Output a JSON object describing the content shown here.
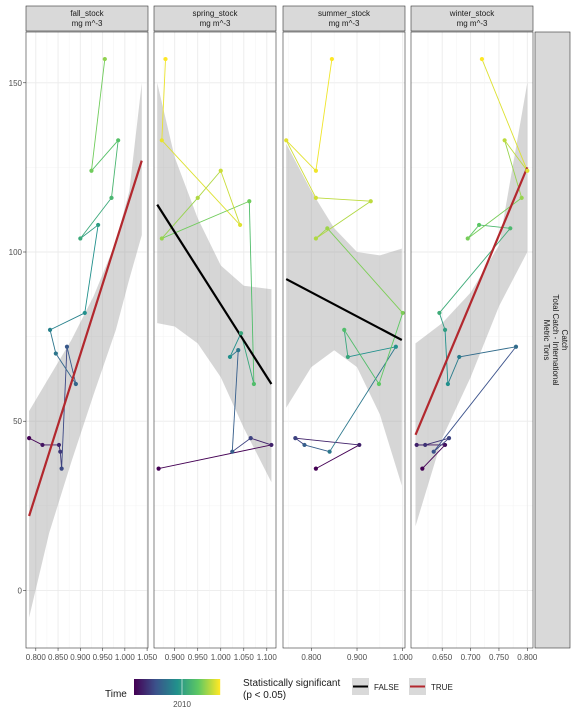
{
  "chart_data": {
    "type": "scatter",
    "y_ticks": [
      0,
      50,
      100,
      150
    ],
    "ylim": [
      -17,
      165
    ],
    "strip_right": [
      "Catch",
      "Total Catch - International",
      "Metric Tons"
    ],
    "time_colors": [
      "#440154",
      "#3b528b",
      "#21908c",
      "#5dc863",
      "#fde725"
    ],
    "panels": [
      {
        "title": "fall_stock",
        "units": "mg m^-3",
        "xlim": [
          0.778,
          1.052
        ],
        "x_ticks": [
          0.8,
          0.85,
          0.9,
          0.95,
          1.0,
          1.05
        ],
        "x_tick_labels": [
          "0.800",
          "0.850",
          "0.900",
          "0.950",
          "1.000",
          "1.050"
        ],
        "significant": true,
        "trend": [
          [
            0.785,
            22
          ],
          [
            1.038,
            127
          ]
        ],
        "ribbon_upper": [
          [
            0.785,
            53
          ],
          [
            0.83,
            63
          ],
          [
            0.88,
            74
          ],
          [
            0.93,
            87
          ],
          [
            0.98,
            103
          ],
          [
            1.01,
            118
          ],
          [
            1.038,
            150
          ]
        ],
        "ribbon_lower": [
          [
            0.785,
            -8
          ],
          [
            0.83,
            17
          ],
          [
            0.88,
            38
          ],
          [
            0.93,
            58
          ],
          [
            0.98,
            77
          ],
          [
            1.01,
            92
          ],
          [
            1.038,
            105
          ]
        ],
        "points": [
          [
            0.785,
            45,
            0.0
          ],
          [
            0.815,
            43,
            0.06
          ],
          [
            0.852,
            43,
            0.11
          ],
          [
            0.855,
            41,
            0.17
          ],
          [
            0.858,
            36,
            0.22
          ],
          [
            0.87,
            72,
            0.28
          ],
          [
            0.89,
            61,
            0.33
          ],
          [
            0.845,
            70,
            0.39
          ],
          [
            0.832,
            77,
            0.44
          ],
          [
            0.91,
            82,
            0.5
          ],
          [
            0.94,
            108,
            0.56
          ],
          [
            0.9,
            104,
            0.61
          ],
          [
            0.97,
            116,
            0.67
          ],
          [
            0.985,
            133,
            0.72
          ],
          [
            0.925,
            124,
            0.78
          ],
          [
            0.955,
            157,
            0.83
          ]
        ]
      },
      {
        "title": "spring_stock",
        "units": "mg m^-3",
        "xlim": [
          0.855,
          1.12
        ],
        "x_ticks": [
          0.9,
          0.95,
          1.0,
          1.05,
          1.1
        ],
        "x_tick_labels": [
          "0.900",
          "0.950",
          "1.000",
          "1.050",
          "1.100"
        ],
        "significant": false,
        "trend": [
          [
            0.862,
            114
          ],
          [
            1.11,
            61
          ]
        ],
        "ribbon_upper": [
          [
            0.862,
            150
          ],
          [
            0.9,
            128
          ],
          [
            0.95,
            110
          ],
          [
            1.0,
            96
          ],
          [
            1.05,
            90
          ],
          [
            1.11,
            89
          ]
        ],
        "ribbon_lower": [
          [
            0.862,
            79
          ],
          [
            0.9,
            78
          ],
          [
            0.95,
            73
          ],
          [
            1.0,
            63
          ],
          [
            1.05,
            48
          ],
          [
            1.11,
            32
          ]
        ],
        "points": [
          [
            0.865,
            36,
            0.0
          ],
          [
            1.11,
            43,
            0.1
          ],
          [
            1.065,
            45,
            0.2
          ],
          [
            1.025,
            41,
            0.3
          ],
          [
            1.038,
            71,
            0.4
          ],
          [
            1.02,
            69,
            0.5
          ],
          [
            1.044,
            76,
            0.6
          ],
          [
            1.072,
            61,
            0.7
          ],
          [
            1.062,
            115,
            0.78
          ],
          [
            0.872,
            104,
            0.84
          ],
          [
            0.95,
            116,
            0.88
          ],
          [
            1.0,
            124,
            0.92
          ],
          [
            1.042,
            108,
            0.95
          ],
          [
            0.872,
            133,
            0.97
          ],
          [
            0.88,
            157,
            1.0
          ]
        ]
      },
      {
        "title": "summer_stock",
        "units": "mg m^-3",
        "xlim": [
          0.738,
          1.005
        ],
        "x_ticks": [
          0.8,
          0.9,
          1.0
        ],
        "x_tick_labels": [
          "0.800",
          "0.900",
          "1.000"
        ],
        "significant": false,
        "trend": [
          [
            0.745,
            92
          ],
          [
            0.998,
            74
          ]
        ],
        "ribbon_upper": [
          [
            0.745,
            132
          ],
          [
            0.8,
            118
          ],
          [
            0.85,
            107
          ],
          [
            0.9,
            100
          ],
          [
            0.95,
            99
          ],
          [
            0.998,
            101
          ]
        ],
        "ribbon_lower": [
          [
            0.745,
            54
          ],
          [
            0.8,
            66
          ],
          [
            0.85,
            71
          ],
          [
            0.9,
            66
          ],
          [
            0.95,
            52
          ],
          [
            0.998,
            31
          ]
        ],
        "points": [
          [
            0.81,
            36,
            0.0
          ],
          [
            0.905,
            43,
            0.1
          ],
          [
            0.765,
            45,
            0.2
          ],
          [
            0.785,
            43,
            0.3
          ],
          [
            0.84,
            41,
            0.4
          ],
          [
            0.985,
            72,
            0.5
          ],
          [
            0.88,
            69,
            0.6
          ],
          [
            0.872,
            77,
            0.7
          ],
          [
            0.948,
            61,
            0.75
          ],
          [
            1.0,
            82,
            0.8
          ],
          [
            0.835,
            107,
            0.85
          ],
          [
            0.81,
            104,
            0.88
          ],
          [
            0.93,
            115,
            0.9
          ],
          [
            0.81,
            116,
            0.93
          ],
          [
            0.745,
            133,
            0.96
          ],
          [
            0.81,
            124,
            0.98
          ],
          [
            0.845,
            157,
            1.0
          ]
        ]
      },
      {
        "title": "winter_stock",
        "units": "mg m^-3",
        "xlim": [
          0.595,
          0.81
        ],
        "x_ticks": [
          0.65,
          0.7,
          0.75,
          0.8
        ],
        "x_tick_labels": [
          "0.650",
          "0.700",
          "0.750",
          "0.800"
        ],
        "significant": true,
        "trend": [
          [
            0.603,
            46
          ],
          [
            0.8,
            125
          ]
        ],
        "ribbon_upper": [
          [
            0.603,
            73
          ],
          [
            0.65,
            79
          ],
          [
            0.7,
            88
          ],
          [
            0.75,
            102
          ],
          [
            0.8,
            150
          ]
        ],
        "ribbon_lower": [
          [
            0.603,
            19
          ],
          [
            0.65,
            45
          ],
          [
            0.7,
            63
          ],
          [
            0.75,
            84
          ],
          [
            0.8,
            100
          ]
        ],
        "points": [
          [
            0.615,
            36,
            0.0
          ],
          [
            0.655,
            43,
            0.05
          ],
          [
            0.605,
            43,
            0.1
          ],
          [
            0.62,
            43,
            0.15
          ],
          [
            0.662,
            45,
            0.2
          ],
          [
            0.635,
            41,
            0.25
          ],
          [
            0.78,
            72,
            0.35
          ],
          [
            0.68,
            69,
            0.42
          ],
          [
            0.66,
            61,
            0.5
          ],
          [
            0.655,
            77,
            0.56
          ],
          [
            0.645,
            82,
            0.62
          ],
          [
            0.77,
            107,
            0.68
          ],
          [
            0.715,
            108,
            0.74
          ],
          [
            0.695,
            104,
            0.79
          ],
          [
            0.79,
            116,
            0.84
          ],
          [
            0.76,
            133,
            0.9
          ],
          [
            0.8,
            124,
            0.95
          ],
          [
            0.72,
            157,
            1.0
          ]
        ]
      }
    ],
    "legend": {
      "time_title": "Time",
      "time_tick": "2010",
      "sig_title_line1": "Statistically significant",
      "sig_title_line2": "(p < 0.05)",
      "items": [
        {
          "label": "FALSE",
          "color": "#000000"
        },
        {
          "label": "TRUE",
          "color": "#b2282e"
        }
      ]
    }
  }
}
